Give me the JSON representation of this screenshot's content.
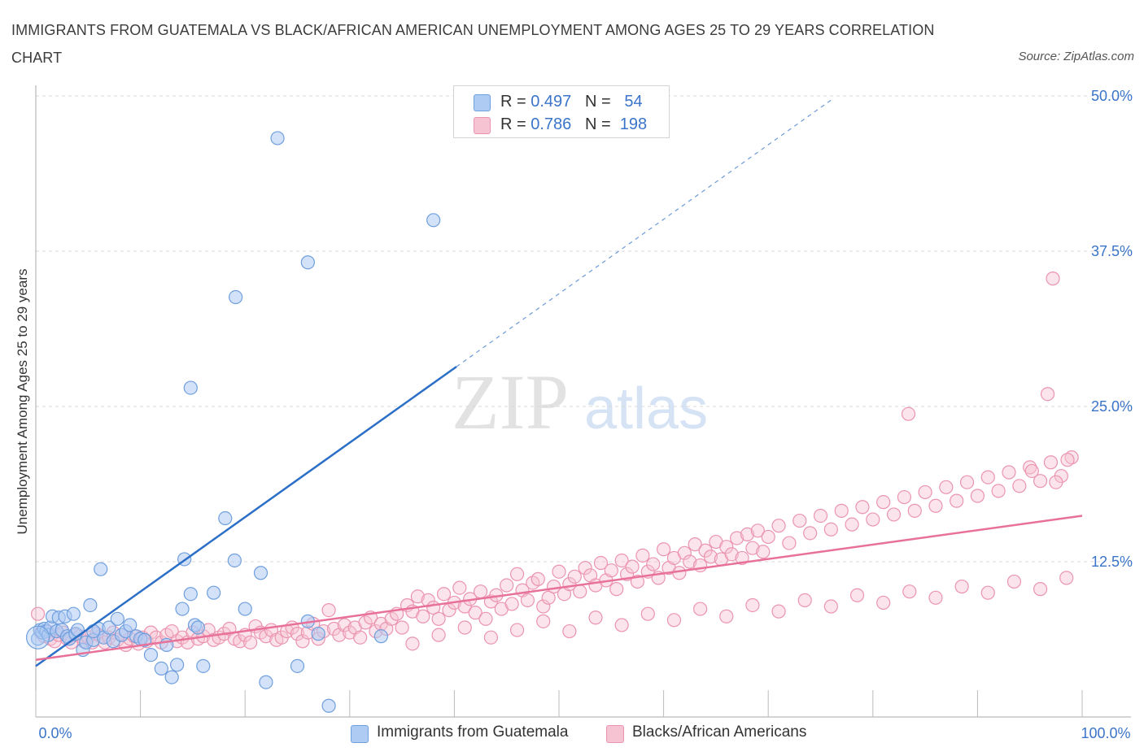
{
  "title": "IMMIGRANTS FROM GUATEMALA VS BLACK/AFRICAN AMERICAN UNEMPLOYMENT AMONG AGES 25 TO 29 YEARS CORRELATION CHART",
  "source": "Source: ZipAtlas.com",
  "watermark": {
    "zip": "ZIP",
    "atlas": "atlas"
  },
  "legend": {
    "r_label": "R =",
    "n_label": "N =",
    "series": [
      {
        "r": "0.497",
        "n": "54"
      },
      {
        "r": "0.786",
        "n": "198"
      }
    ]
  },
  "bottom_legend": [
    "Immigrants from Guatemala",
    "Blacks/African Americans"
  ],
  "colors": {
    "blue_stroke": "#6f9fde",
    "blue_fill": "#aecbf3",
    "blue_line": "#2c6fc7",
    "pink_stroke": "#eb94b0",
    "pink_fill": "#f6c3d3",
    "pink_line": "#e8719a",
    "axis_label": "#3b74c9",
    "grid": "#d8d8d8"
  },
  "chart_data": {
    "type": "scatter",
    "title": "IMMIGRANTS FROM GUATEMALA VS BLACK/AFRICAN AMERICAN UNEMPLOYMENT AMONG AGES 25 TO 29 YEARS CORRELATION CHART",
    "xlabel": "",
    "ylabel": "Unemployment Among Ages 25 to 29 years",
    "xlim": [
      0,
      100
    ],
    "ylim": [
      0,
      50
    ],
    "x_tick_labels": [
      "0.0%",
      "100.0%"
    ],
    "y_ticks": [
      12.5,
      25,
      37.5,
      50
    ],
    "y_tick_labels": [
      "12.5%",
      "25.0%",
      "37.5%",
      "50.0%"
    ],
    "grid": "horizontal dashed",
    "series": [
      {
        "name": "Immigrants from Guatemala",
        "r": 0.497,
        "n": 54,
        "trend": {
          "x0": 0,
          "y0": 4.1,
          "x1": 40.2,
          "y1": 28.2,
          "dashed_to_x": 76.3
        },
        "points": [
          [
            0.2,
            6.3
          ],
          [
            0.4,
            7.0
          ],
          [
            0.6,
            6.8
          ],
          [
            0.8,
            7.1
          ],
          [
            1.0,
            6.9
          ],
          [
            1.2,
            6.6
          ],
          [
            1.4,
            7.2
          ],
          [
            1.6,
            8.1
          ],
          [
            2.0,
            6.9
          ],
          [
            2.2,
            8.0
          ],
          [
            2.5,
            7.0
          ],
          [
            2.8,
            8.1
          ],
          [
            3.0,
            6.5
          ],
          [
            3.2,
            6.3
          ],
          [
            3.6,
            8.3
          ],
          [
            3.8,
            6.7
          ],
          [
            4.0,
            7.0
          ],
          [
            4.5,
            5.4
          ],
          [
            4.8,
            6.0
          ],
          [
            5.2,
            9.0
          ],
          [
            5.5,
            6.2
          ],
          [
            6.0,
            7.1
          ],
          [
            6.5,
            6.4
          ],
          [
            7.0,
            7.2
          ],
          [
            7.4,
            6.1
          ],
          [
            7.8,
            7.9
          ],
          [
            8.2,
            6.6
          ],
          [
            8.6,
            6.9
          ],
          [
            9.0,
            7.4
          ],
          [
            9.6,
            6.5
          ],
          [
            10.0,
            6.3
          ],
          [
            10.4,
            6.2
          ],
          [
            11.0,
            5.0
          ],
          [
            12.0,
            3.9
          ],
          [
            12.5,
            5.8
          ],
          [
            13.0,
            3.2
          ],
          [
            13.5,
            4.2
          ],
          [
            14.0,
            8.7
          ],
          [
            14.2,
            12.7
          ],
          [
            14.8,
            9.9
          ],
          [
            15.2,
            7.4
          ],
          [
            15.5,
            7.2
          ],
          [
            16.0,
            4.1
          ],
          [
            17.0,
            10.0
          ],
          [
            19.0,
            12.6
          ],
          [
            20.0,
            8.7
          ],
          [
            21.5,
            11.6
          ],
          [
            22.0,
            2.8
          ],
          [
            25.0,
            4.1
          ],
          [
            26.0,
            7.7
          ],
          [
            27.0,
            6.7
          ],
          [
            28.0,
            0.9
          ],
          [
            33.0,
            6.5
          ],
          [
            5.5,
            6.9
          ]
        ],
        "outliers": [
          [
            23.1,
            46.6
          ],
          [
            38.0,
            40.0
          ],
          [
            19.1,
            33.8
          ],
          [
            26.0,
            36.6
          ],
          [
            14.8,
            26.5
          ],
          [
            18.1,
            16.0
          ],
          [
            6.2,
            11.9
          ]
        ]
      },
      {
        "name": "Blacks/African Americans",
        "r": 0.786,
        "n": 198,
        "trend": {
          "x0": 0,
          "y0": 4.6,
          "x1": 100,
          "y1": 16.2
        },
        "points": [
          [
            0.2,
            8.3
          ],
          [
            0.5,
            6.8
          ],
          [
            0.8,
            6.5
          ],
          [
            1.1,
            6.9
          ],
          [
            1.4,
            6.3
          ],
          [
            1.8,
            6.1
          ],
          [
            2.2,
            6.6
          ],
          [
            2.6,
            6.8
          ],
          [
            3.0,
            6.3
          ],
          [
            3.4,
            6.0
          ],
          [
            3.8,
            6.6
          ],
          [
            4.2,
            6.5
          ],
          [
            4.6,
            6.1
          ],
          [
            5.0,
            6.4
          ],
          [
            5.4,
            6.0
          ],
          [
            5.8,
            6.7
          ],
          [
            6.2,
            6.5
          ],
          [
            6.6,
            6.0
          ],
          [
            7.0,
            6.4
          ],
          [
            7.4,
            6.8
          ],
          [
            7.8,
            6.2
          ],
          [
            8.2,
            6.6
          ],
          [
            8.6,
            5.8
          ],
          [
            9.0,
            6.3
          ],
          [
            9.4,
            6.5
          ],
          [
            9.8,
            5.9
          ],
          [
            10.2,
            6.4
          ],
          [
            10.6,
            6.1
          ],
          [
            11.0,
            6.8
          ],
          [
            11.5,
            6.4
          ],
          [
            12.0,
            6.0
          ],
          [
            12.5,
            6.6
          ],
          [
            13.0,
            6.9
          ],
          [
            13.5,
            6.1
          ],
          [
            14.0,
            6.4
          ],
          [
            14.5,
            6.0
          ],
          [
            15.0,
            6.8
          ],
          [
            15.5,
            6.3
          ],
          [
            16.0,
            6.5
          ],
          [
            16.5,
            7.0
          ],
          [
            17.0,
            6.2
          ],
          [
            17.5,
            6.4
          ],
          [
            18.0,
            6.7
          ],
          [
            18.5,
            7.1
          ],
          [
            19.0,
            6.3
          ],
          [
            19.5,
            6.1
          ],
          [
            20.0,
            6.6
          ],
          [
            20.5,
            6.0
          ],
          [
            21.0,
            7.3
          ],
          [
            21.5,
            6.8
          ],
          [
            22.0,
            6.5
          ],
          [
            22.5,
            7.0
          ],
          [
            23.0,
            6.2
          ],
          [
            23.5,
            6.4
          ],
          [
            24.0,
            6.9
          ],
          [
            24.5,
            7.2
          ],
          [
            25.0,
            6.7
          ],
          [
            25.5,
            6.1
          ],
          [
            26.0,
            6.8
          ],
          [
            26.5,
            7.5
          ],
          [
            27.0,
            6.3
          ],
          [
            27.5,
            6.9
          ],
          [
            28.0,
            8.6
          ],
          [
            28.5,
            7.1
          ],
          [
            29.0,
            6.6
          ],
          [
            29.5,
            7.4
          ],
          [
            30.0,
            6.8
          ],
          [
            30.5,
            7.2
          ],
          [
            31.0,
            6.4
          ],
          [
            31.5,
            7.6
          ],
          [
            32.0,
            8.0
          ],
          [
            32.5,
            6.9
          ],
          [
            33.0,
            7.5
          ],
          [
            33.5,
            7.1
          ],
          [
            34.0,
            7.9
          ],
          [
            34.5,
            8.3
          ],
          [
            35.0,
            7.2
          ],
          [
            35.5,
            9.0
          ],
          [
            36.0,
            8.5
          ],
          [
            36.5,
            9.7
          ],
          [
            37.0,
            8.1
          ],
          [
            37.5,
            9.4
          ],
          [
            38.0,
            8.8
          ],
          [
            38.5,
            7.9
          ],
          [
            39.0,
            9.9
          ],
          [
            39.5,
            8.6
          ],
          [
            40.0,
            9.2
          ],
          [
            40.5,
            10.4
          ],
          [
            41.0,
            8.9
          ],
          [
            41.5,
            9.5
          ],
          [
            42.0,
            8.4
          ],
          [
            42.5,
            10.1
          ],
          [
            43.0,
            7.9
          ],
          [
            43.5,
            9.3
          ],
          [
            44.0,
            9.8
          ],
          [
            44.5,
            8.7
          ],
          [
            45.0,
            10.6
          ],
          [
            45.5,
            9.1
          ],
          [
            46.0,
            11.5
          ],
          [
            46.5,
            10.2
          ],
          [
            47.0,
            9.4
          ],
          [
            47.5,
            10.8
          ],
          [
            48.0,
            11.1
          ],
          [
            48.5,
            8.9
          ],
          [
            49.0,
            9.6
          ],
          [
            49.5,
            10.5
          ],
          [
            50.0,
            11.7
          ],
          [
            50.5,
            9.9
          ],
          [
            51.0,
            10.7
          ],
          [
            51.5,
            11.3
          ],
          [
            52.0,
            10.1
          ],
          [
            52.5,
            12.0
          ],
          [
            53.0,
            11.4
          ],
          [
            53.5,
            10.6
          ],
          [
            54.0,
            12.4
          ],
          [
            54.5,
            11.0
          ],
          [
            55.0,
            11.8
          ],
          [
            55.5,
            10.3
          ],
          [
            56.0,
            12.6
          ],
          [
            56.5,
            11.5
          ],
          [
            57.0,
            12.1
          ],
          [
            57.5,
            10.9
          ],
          [
            58.0,
            13.0
          ],
          [
            58.5,
            11.7
          ],
          [
            59.0,
            12.3
          ],
          [
            59.5,
            11.2
          ],
          [
            60.0,
            13.5
          ],
          [
            60.5,
            12.0
          ],
          [
            61.0,
            12.8
          ],
          [
            61.5,
            11.6
          ],
          [
            62.0,
            13.2
          ],
          [
            62.5,
            12.5
          ],
          [
            63.0,
            13.9
          ],
          [
            63.5,
            12.2
          ],
          [
            64.0,
            13.4
          ],
          [
            64.5,
            12.9
          ],
          [
            65.0,
            14.1
          ],
          [
            65.5,
            12.7
          ],
          [
            66.0,
            13.7
          ],
          [
            66.5,
            13.1
          ],
          [
            67.0,
            14.4
          ],
          [
            67.5,
            12.8
          ],
          [
            68.0,
            14.7
          ],
          [
            68.5,
            13.6
          ],
          [
            69.0,
            15.0
          ],
          [
            69.5,
            13.3
          ],
          [
            70.0,
            14.5
          ],
          [
            71.0,
            15.4
          ],
          [
            72.0,
            14.0
          ],
          [
            73.0,
            15.8
          ],
          [
            74.0,
            14.8
          ],
          [
            75.0,
            16.2
          ],
          [
            76.0,
            15.1
          ],
          [
            77.0,
            16.6
          ],
          [
            78.0,
            15.5
          ],
          [
            79.0,
            16.9
          ],
          [
            80.0,
            15.9
          ],
          [
            81.0,
            17.3
          ],
          [
            82.0,
            16.3
          ],
          [
            83.0,
            17.7
          ],
          [
            84.0,
            16.6
          ],
          [
            85.0,
            18.1
          ],
          [
            86.0,
            17.0
          ],
          [
            87.0,
            18.5
          ],
          [
            88.0,
            17.4
          ],
          [
            89.0,
            18.9
          ],
          [
            90.0,
            17.8
          ],
          [
            91.0,
            19.3
          ],
          [
            92.0,
            18.2
          ],
          [
            93.0,
            19.7
          ],
          [
            94.0,
            18.6
          ],
          [
            95.0,
            20.1
          ],
          [
            96.0,
            19.0
          ],
          [
            97.0,
            20.5
          ],
          [
            98.0,
            19.4
          ],
          [
            99.0,
            20.9
          ],
          [
            36.0,
            5.9
          ],
          [
            38.5,
            6.6
          ],
          [
            41.0,
            7.2
          ],
          [
            43.5,
            6.4
          ],
          [
            46.0,
            7.0
          ],
          [
            48.5,
            7.7
          ],
          [
            51.0,
            6.9
          ],
          [
            53.5,
            8.0
          ],
          [
            56.0,
            7.4
          ],
          [
            58.5,
            8.3
          ],
          [
            61.0,
            7.8
          ],
          [
            63.5,
            8.7
          ],
          [
            66.0,
            8.1
          ],
          [
            68.5,
            9.0
          ],
          [
            71.0,
            8.5
          ],
          [
            73.5,
            9.4
          ],
          [
            76.0,
            8.9
          ],
          [
            78.5,
            9.8
          ],
          [
            81.0,
            9.2
          ],
          [
            83.5,
            10.1
          ],
          [
            86.0,
            9.6
          ],
          [
            88.5,
            10.5
          ],
          [
            91.0,
            10.0
          ],
          [
            93.5,
            10.9
          ],
          [
            96.0,
            10.3
          ],
          [
            98.5,
            11.2
          ]
        ],
        "outliers": [
          [
            97.2,
            35.3
          ],
          [
            96.7,
            26.0
          ],
          [
            83.4,
            24.4
          ],
          [
            97.5,
            18.9
          ],
          [
            98.6,
            20.7
          ],
          [
            95.2,
            19.8
          ]
        ]
      }
    ]
  }
}
